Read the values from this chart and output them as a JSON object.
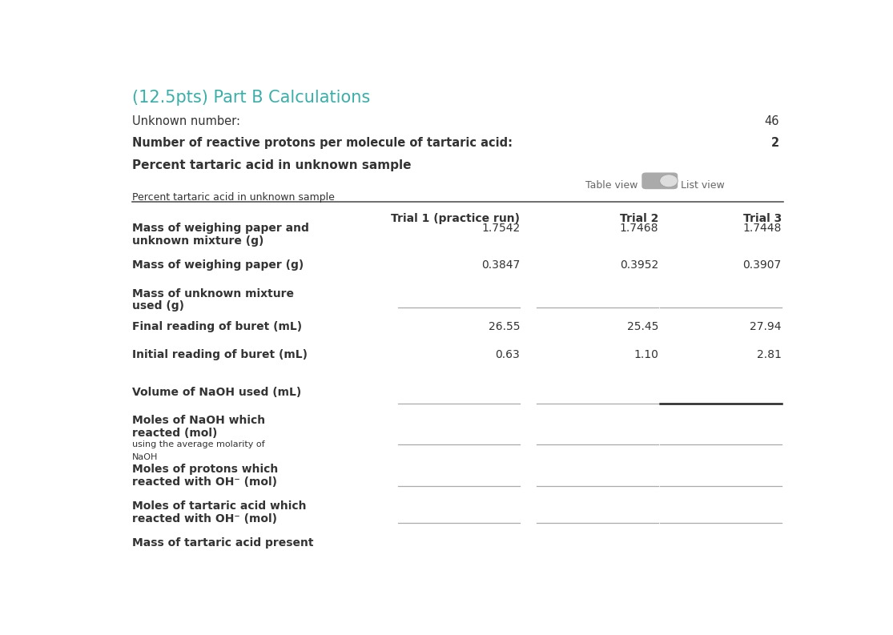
{
  "title": "(12.5pts) Part B Calculations",
  "title_color": "#3aafa9",
  "bg_color": "#ffffff",
  "text_color": "#333333",
  "unknown_label": "Unknown number:",
  "unknown_value": "46",
  "protons_label": "Number of reactive protons per molecule of tartaric acid:",
  "protons_value": "2",
  "heading3": "Percent tartaric acid in unknown sample",
  "toggle_left": "Table view",
  "toggle_right": "List view",
  "table_sublabel": "Percent tartaric acid in unknown sample",
  "col_headers": [
    "",
    "Trial 1 (practice run)",
    "Trial 2",
    "Trial 3"
  ],
  "line_color": "#aaaaaa",
  "line_bold_color": "#222222",
  "separator_color": "#555555"
}
